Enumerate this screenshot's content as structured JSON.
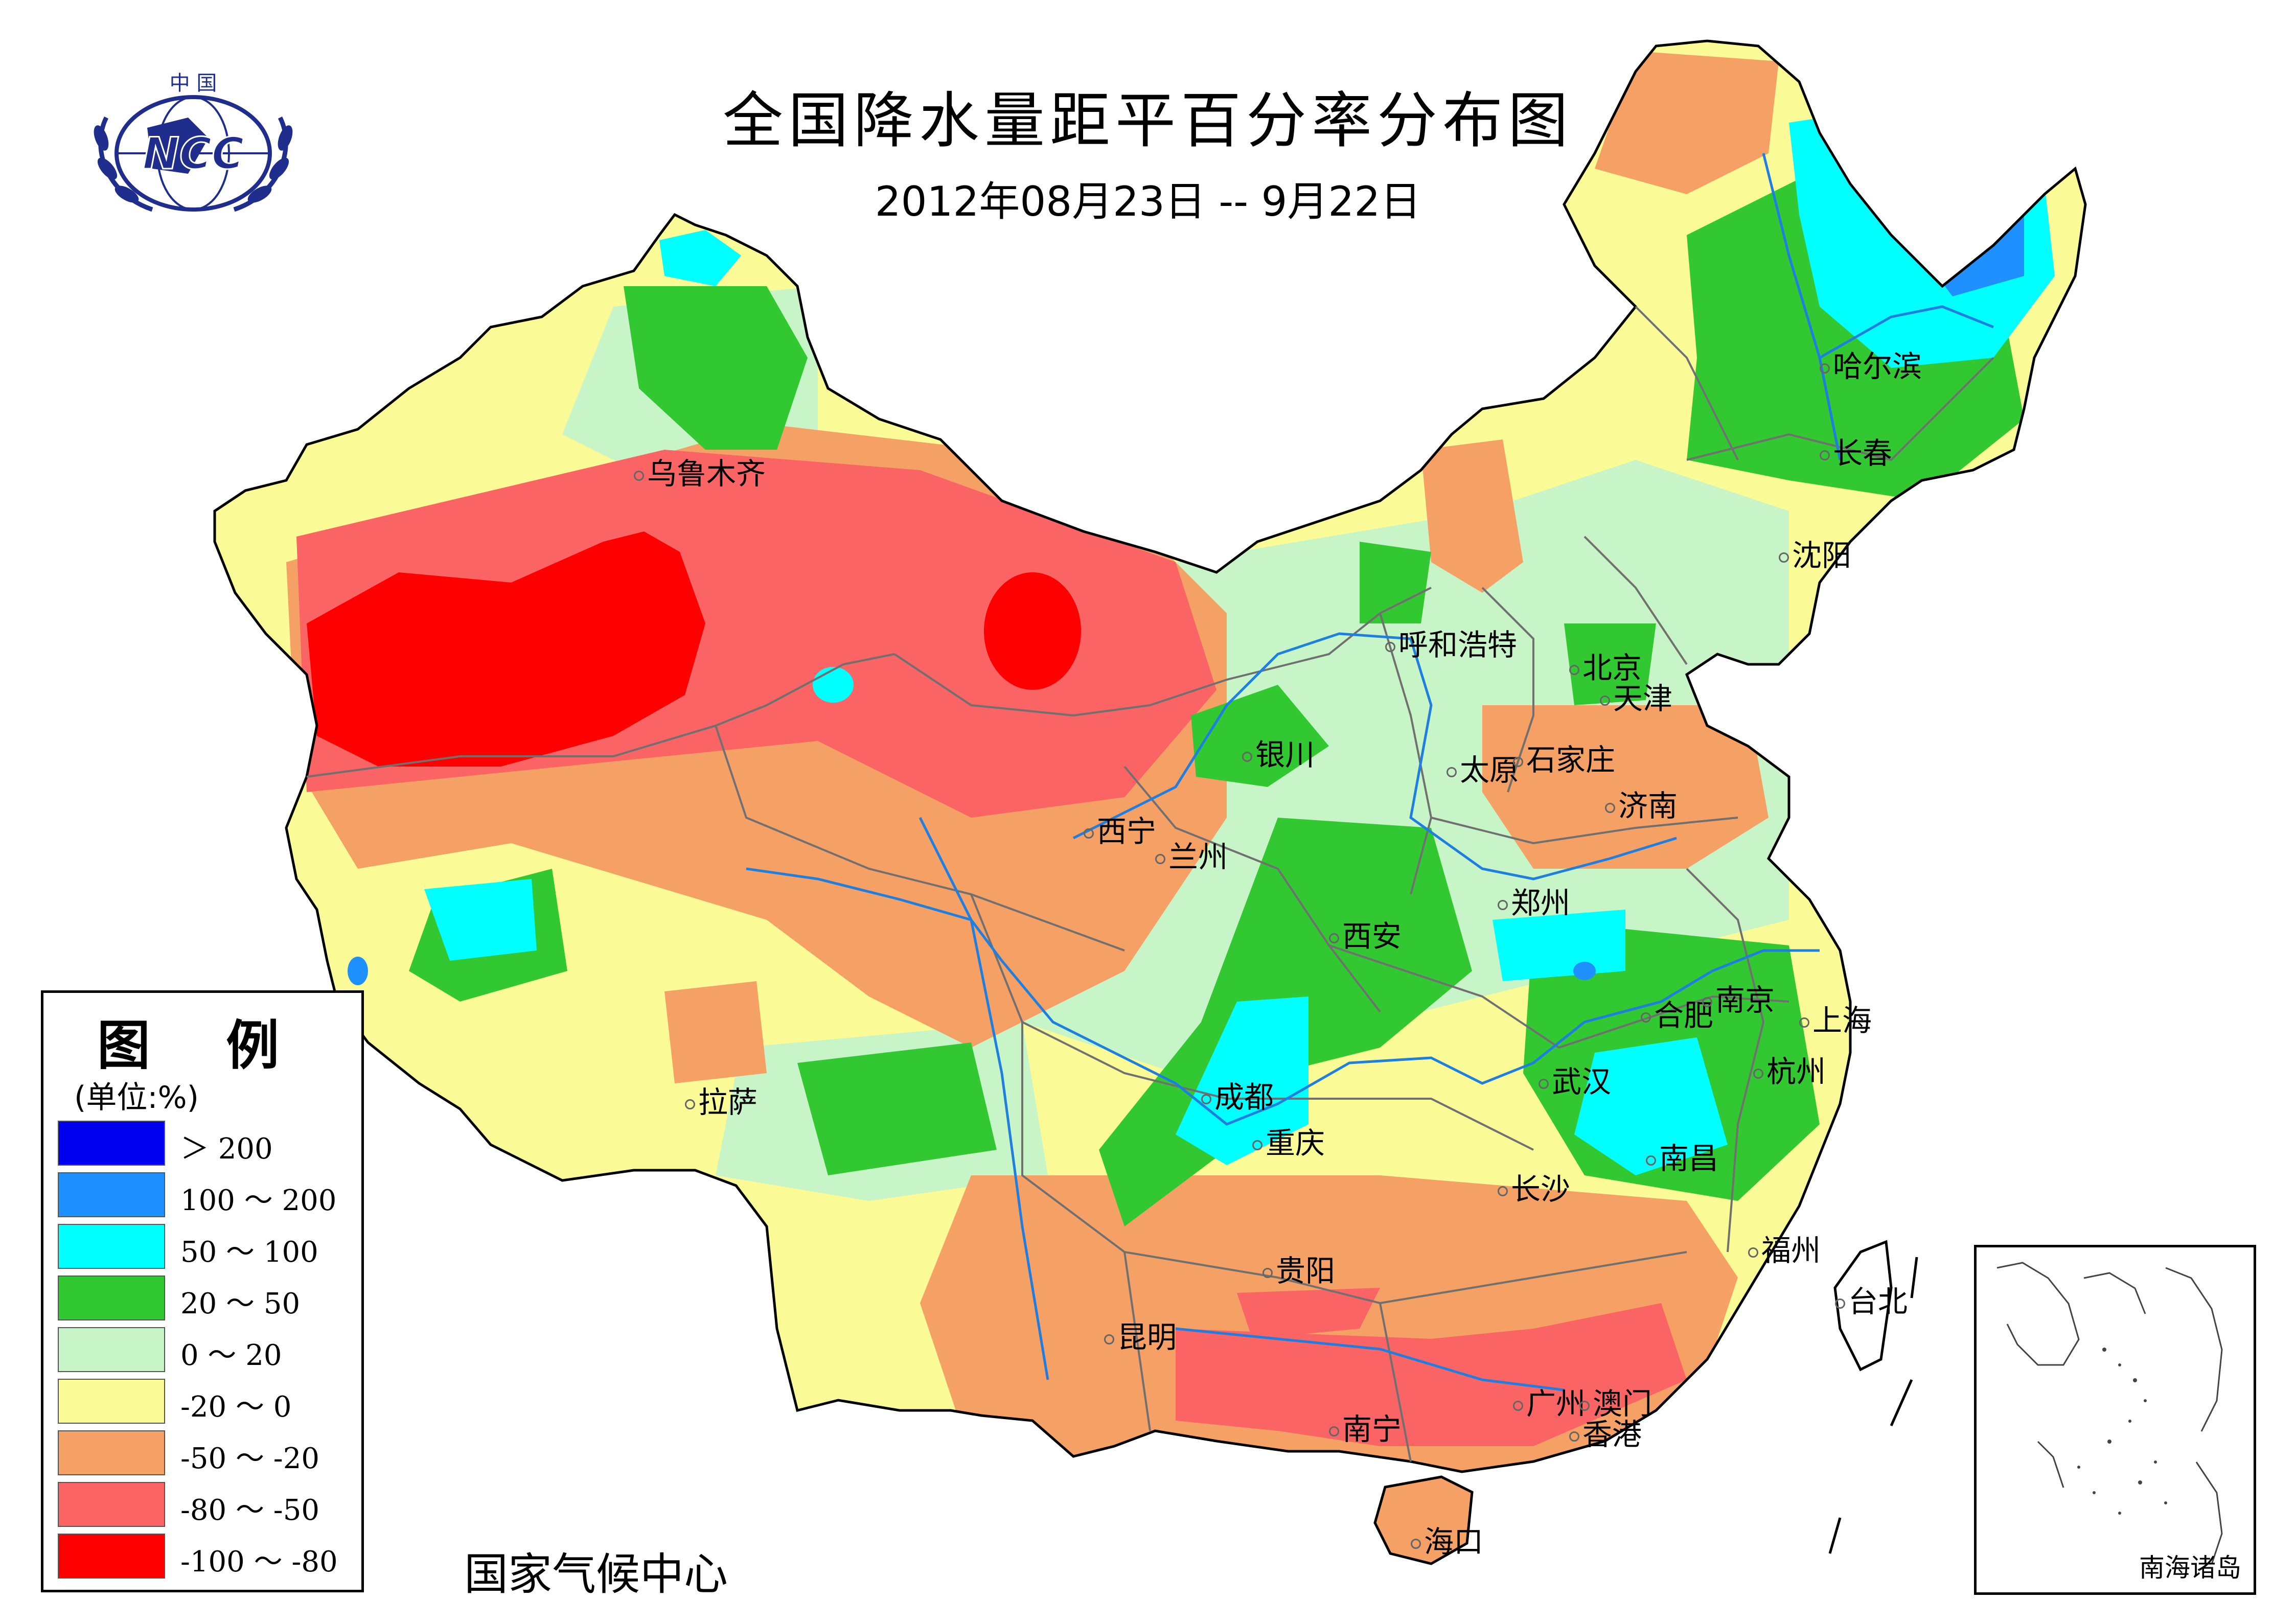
{
  "title": "全国降水量距平百分率分布图",
  "subtitle": "2012年08月23日 -- 9月22日",
  "agency": "国家气候中心",
  "logo": {
    "top_text": "中 国",
    "abbr": "NCC",
    "icon": "ncc-globe-wreath-logo"
  },
  "legend": {
    "title": "图 例",
    "unit": "(单位:%)",
    "items": [
      {
        "label": "＞ 200",
        "color": "#0000f0"
      },
      {
        "label": "100 ～ 200",
        "color": "#1e90ff"
      },
      {
        "label": "50 ～ 100",
        "color": "#00ffff"
      },
      {
        "label": "20 ～ 50",
        "color": "#32c832"
      },
      {
        "label": "0 ～ 20",
        "color": "#c8f5c8"
      },
      {
        "label": "-20 ～ 0",
        "color": "#fafa96"
      },
      {
        "label": "-50 ～ -20",
        "color": "#f5a064"
      },
      {
        "label": "-80 ～ -50",
        "color": "#fa6464"
      },
      {
        "label": "-100 ～ -80",
        "color": "#ff0000"
      }
    ]
  },
  "inset_label": "南海诸岛",
  "cities": {
    "urumqi": "乌鲁木齐",
    "harbin": "哈尔滨",
    "changchun": "长春",
    "shenyang": "沈阳",
    "hohhot": "呼和浩特",
    "beijing": "北京",
    "tianjin": "天津",
    "yinchuan": "银川",
    "taiyuan": "太原",
    "shijiazhuang": "石家庄",
    "jinan": "济南",
    "xining": "西宁",
    "lanzhou": "兰州",
    "zhengzhou": "郑州",
    "xian": "西安",
    "hefei": "合肥",
    "nanjing": "南京",
    "shanghai": "上海",
    "lhasa": "拉萨",
    "chengdu": "成都",
    "wuhan": "武汉",
    "hangzhou": "杭州",
    "chongqing": "重庆",
    "nanchang": "南昌",
    "changsha": "长沙",
    "fuzhou": "福州",
    "guiyang": "贵阳",
    "taipei": "台北",
    "kunming": "昆明",
    "guangzhou": "广州",
    "macau": "澳门",
    "hongkong": "香港",
    "nanning": "南宁",
    "haikou": "海口"
  }
}
